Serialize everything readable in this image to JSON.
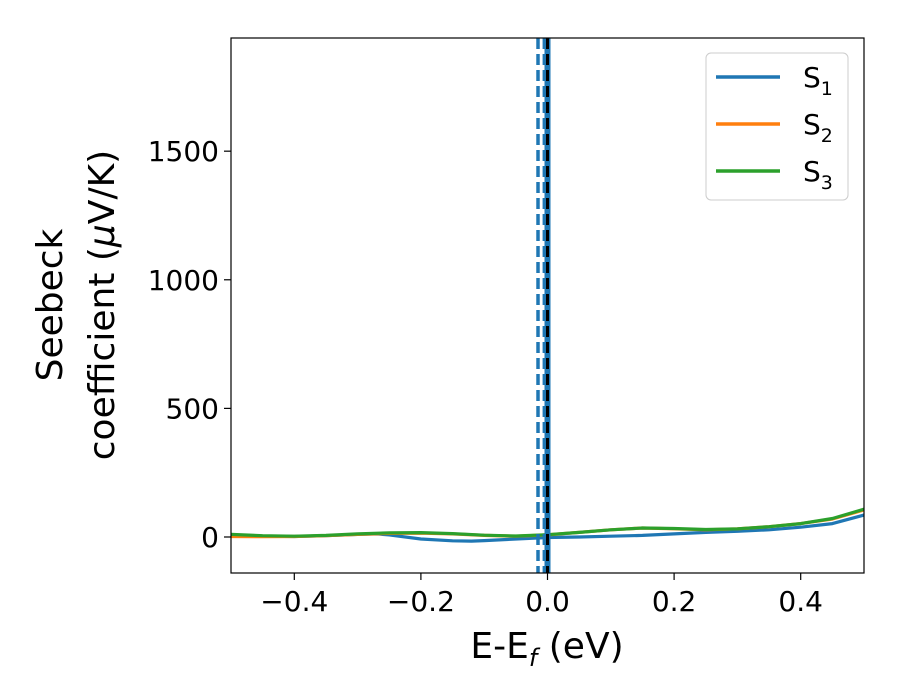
{
  "chart_data": {
    "type": "line",
    "xlabel": "E-E",
    "xlabel_sub": "f",
    "xlabel_unit": " (eV)",
    "ylabel_line1": "Seebeck",
    "ylabel_line2": "coefficient  (",
    "ylabel_mu": "μ",
    "ylabel_unit": "V/K)",
    "xlim": [
      -0.5,
      0.5
    ],
    "ylim": [
      -140,
      1940
    ],
    "xticks": [
      -0.4,
      -0.2,
      0.0,
      0.2,
      0.4
    ],
    "xtick_labels": [
      "−0.4",
      "−0.2",
      "0.0",
      "0.2",
      "0.4"
    ],
    "yticks": [
      0,
      500,
      1000,
      1500
    ],
    "ytick_labels": [
      "0",
      "500",
      "1000",
      "1500"
    ],
    "grid": false,
    "legend_position": "top-right",
    "fermi_line_x": 0.0,
    "dashed_lines_x": [
      -0.015,
      -0.005
    ],
    "series": [
      {
        "name": "S",
        "sub": "1",
        "color": "#1f77b4",
        "x": [
          -0.5,
          -0.45,
          -0.4,
          -0.35,
          -0.3,
          -0.27,
          -0.25,
          -0.2,
          -0.15,
          -0.12,
          -0.1,
          -0.05,
          0.0,
          0.05,
          0.1,
          0.15,
          0.2,
          0.25,
          0.3,
          0.35,
          0.4,
          0.45,
          0.5
        ],
        "y": [
          5,
          3,
          2,
          5,
          10,
          12,
          8,
          -8,
          -15,
          -16,
          -14,
          -8,
          -2,
          0,
          3,
          6,
          12,
          18,
          22,
          28,
          38,
          52,
          85
        ]
      },
      {
        "name": "S",
        "sub": "2",
        "color": "#ff7f0e",
        "x": [
          -0.5,
          -0.45,
          -0.4,
          -0.35,
          -0.3,
          -0.25,
          -0.2,
          -0.15,
          -0.1,
          -0.05,
          0.0,
          0.05,
          0.1,
          0.15,
          0.2,
          0.25,
          0.3,
          0.35,
          0.4,
          0.45,
          0.5
        ],
        "y": [
          2,
          1,
          2,
          5,
          10,
          14,
          15,
          12,
          6,
          3,
          8,
          18,
          28,
          35,
          32,
          28,
          32,
          40,
          52,
          70,
          105
        ]
      },
      {
        "name": "S",
        "sub": "3",
        "color": "#2ca02c",
        "x": [
          -0.5,
          -0.45,
          -0.4,
          -0.35,
          -0.3,
          -0.25,
          -0.2,
          -0.15,
          -0.1,
          -0.05,
          0.0,
          0.05,
          0.1,
          0.15,
          0.2,
          0.25,
          0.3,
          0.35,
          0.4,
          0.45,
          0.5
        ],
        "y": [
          10,
          5,
          3,
          6,
          12,
          16,
          17,
          13,
          7,
          4,
          9,
          18,
          28,
          35,
          33,
          29,
          32,
          40,
          52,
          72,
          108
        ]
      }
    ]
  }
}
